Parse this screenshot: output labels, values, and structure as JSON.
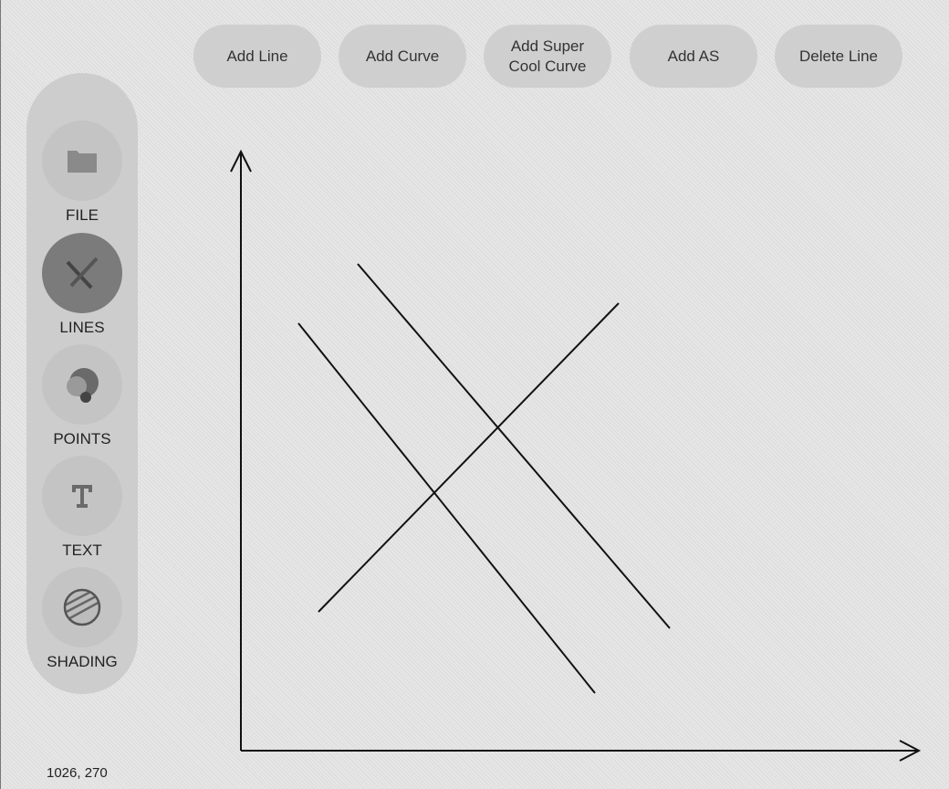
{
  "toolbar": {
    "buttons": [
      {
        "id": "add-line",
        "label": "Add Line"
      },
      {
        "id": "add-curve",
        "label": "Add Curve"
      },
      {
        "id": "add-super-cool-curve",
        "label": "Add Super\nCool Curve"
      },
      {
        "id": "add-as",
        "label": "Add AS"
      },
      {
        "id": "delete-line",
        "label": "Delete Line"
      }
    ]
  },
  "sidebar": {
    "items": [
      {
        "label": "FILE",
        "icon": "folder-icon",
        "active": false
      },
      {
        "label": "LINES",
        "icon": "lines-icon",
        "active": true
      },
      {
        "label": "POINTS",
        "icon": "points-icon",
        "active": false
      },
      {
        "label": "TEXT",
        "icon": "text-icon",
        "active": false
      },
      {
        "label": "SHADING",
        "icon": "shading-icon",
        "active": false
      }
    ]
  },
  "status": {
    "coordinates": "1026, 270"
  },
  "colors": {
    "button_bg": "#cfcfcf",
    "sidebar_bg": "#cdcdcd",
    "active_tool": "#7b7b7b"
  }
}
